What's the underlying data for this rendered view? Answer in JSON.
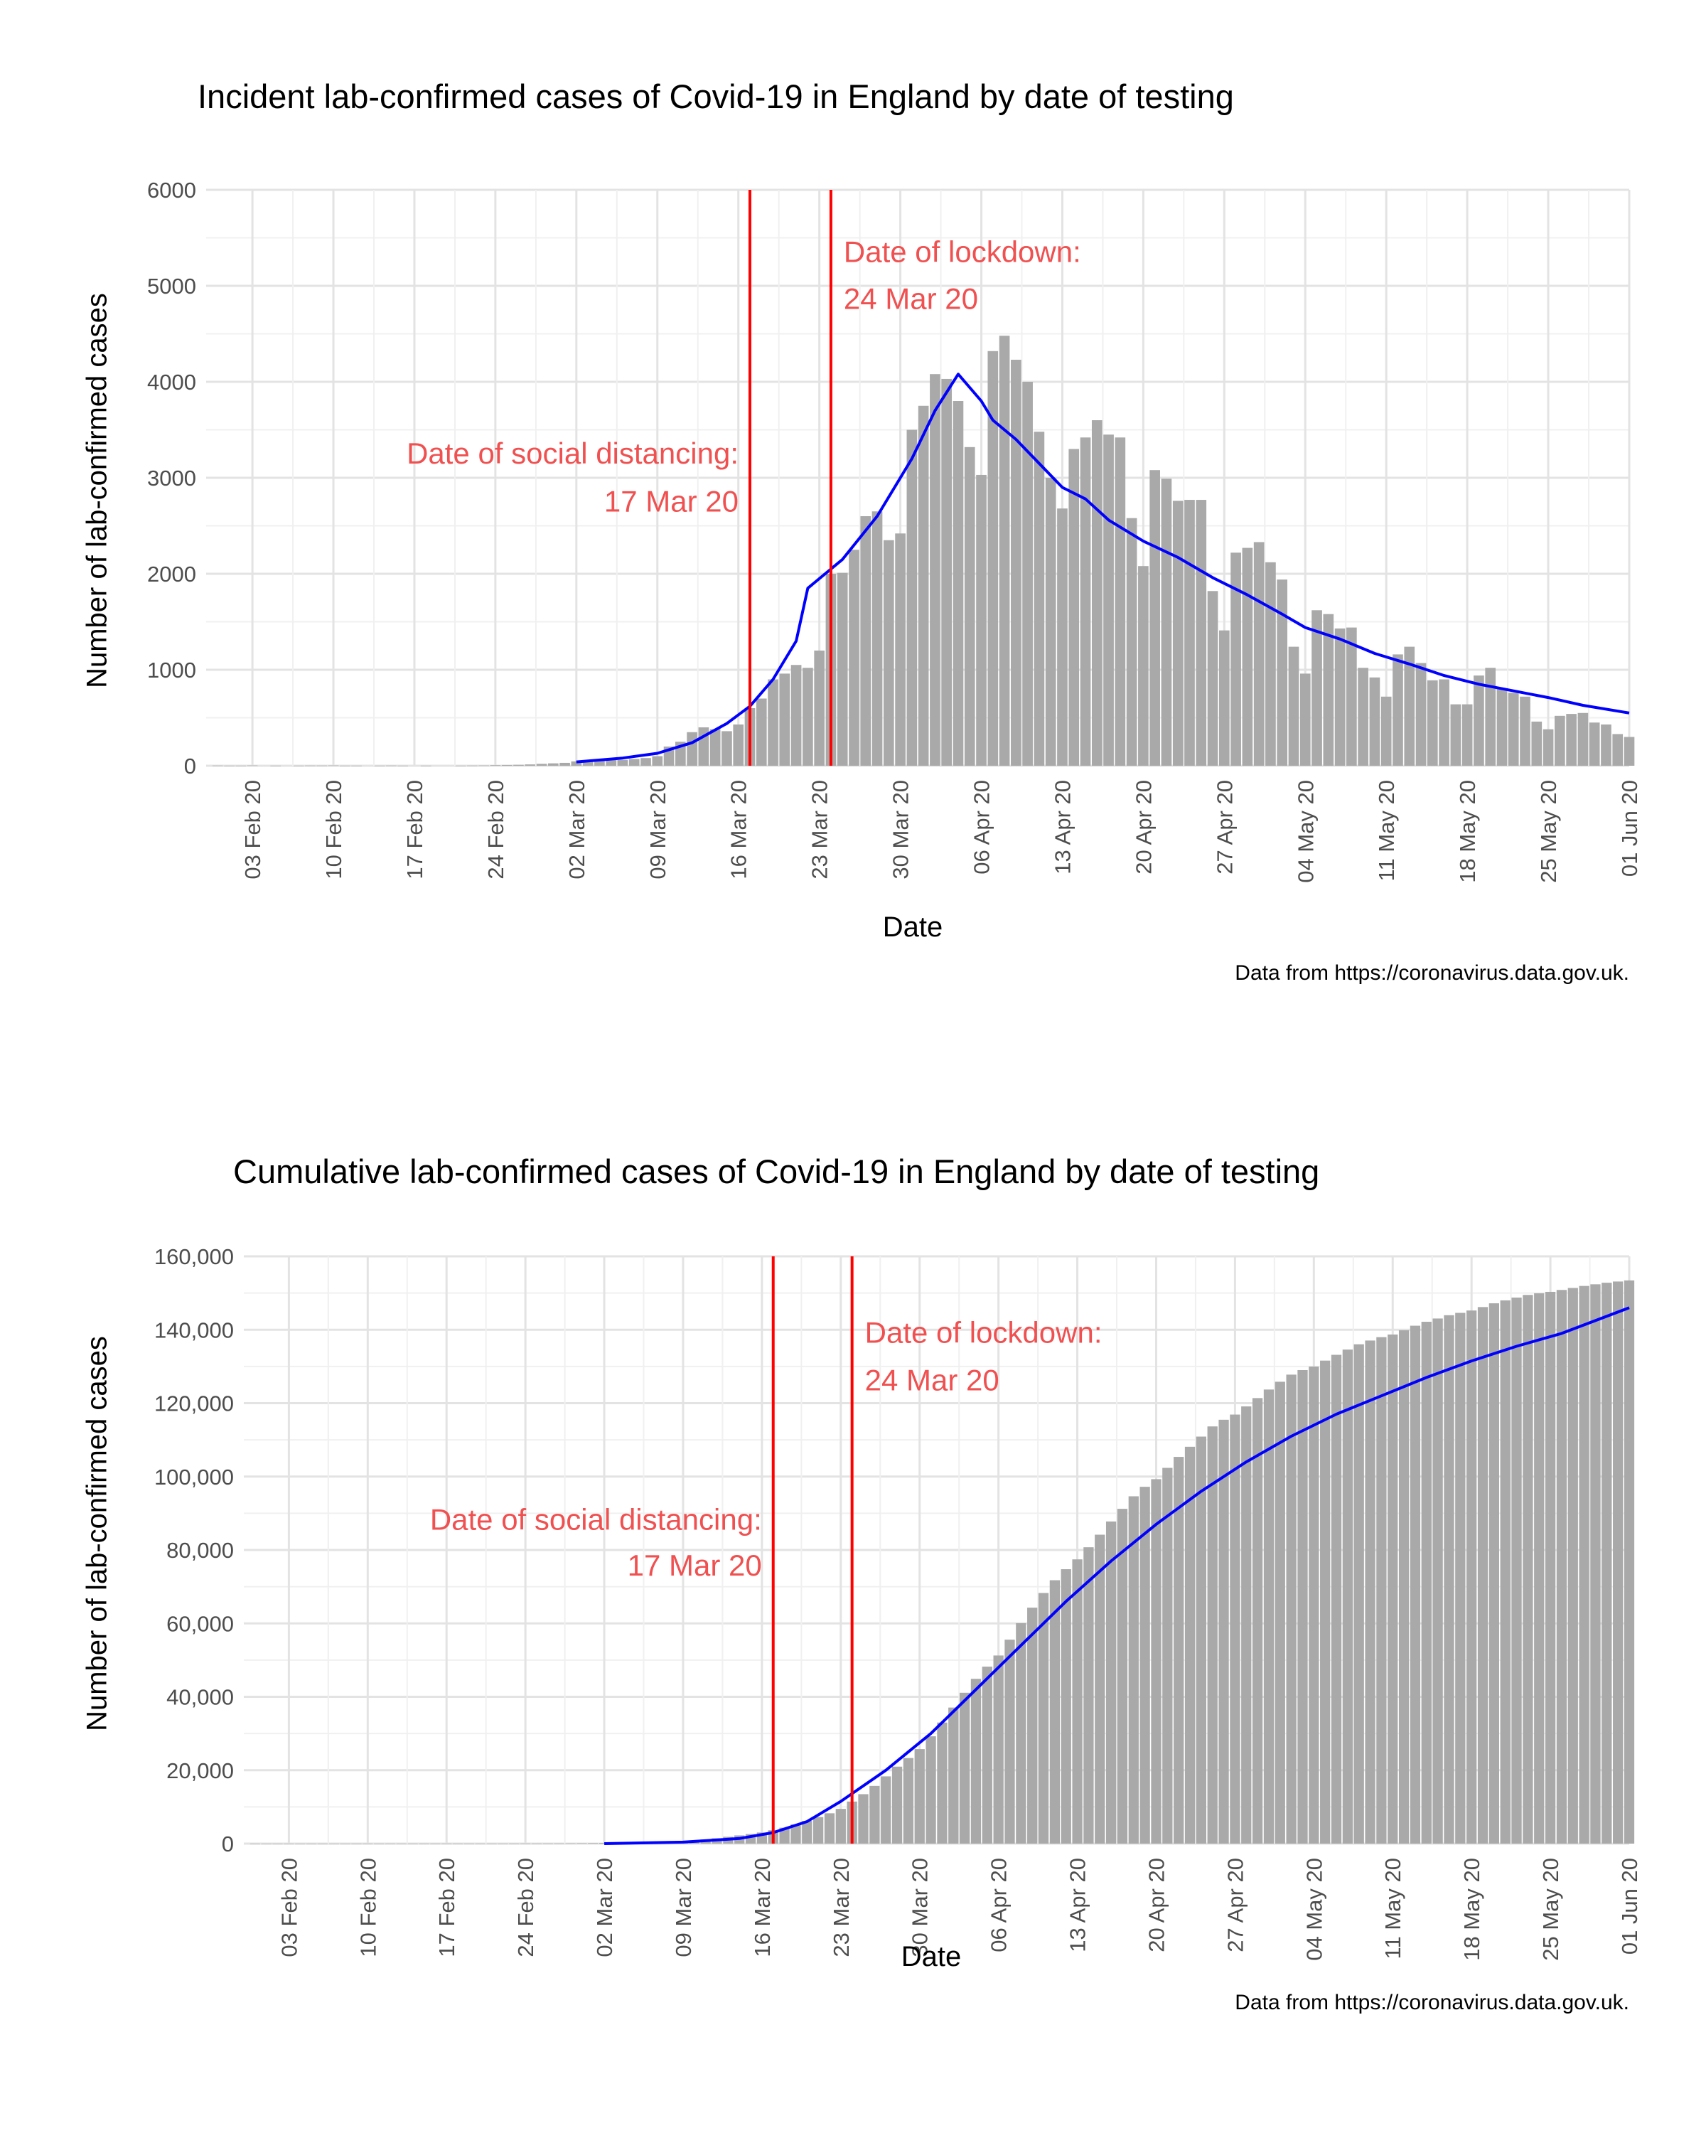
{
  "chart_data": [
    {
      "type": "bar",
      "title": "Incident lab-confirmed cases of Covid-19 in England by date of testing",
      "xlabel": "Date",
      "ylabel": "Number of lab-confirmed cases",
      "caption": "Data from https://coronavirus.data.gov.uk.",
      "x_start": "2020-01-30",
      "x_end": "2020-06-01",
      "xlim": [
        "2020-01-30",
        "2020-06-01"
      ],
      "ylim": [
        0,
        6000
      ],
      "y_ticks": [
        "0",
        "1000",
        "2000",
        "3000",
        "4000",
        "5000",
        "6000"
      ],
      "x_ticks": [
        "03 Feb 20",
        "10 Feb 20",
        "17 Feb 20",
        "24 Feb 20",
        "02 Mar 20",
        "09 Mar 20",
        "16 Mar 20",
        "23 Mar 20",
        "30 Mar 20",
        "06 Apr 20",
        "13 Apr 20",
        "20 Apr 20",
        "27 Apr 20",
        "04 May 20",
        "11 May 20",
        "18 May 20",
        "25 May 20",
        "01 Jun 20"
      ],
      "grid": true,
      "bar_color": "#a9a9a9",
      "series": [
        {
          "kind": "bar",
          "values": [
            0,
            2,
            1,
            1,
            3,
            0,
            1,
            0,
            1,
            2,
            2,
            3,
            1,
            1,
            0,
            1,
            2,
            1,
            0,
            1,
            0,
            0,
            1,
            2,
            3,
            6,
            8,
            10,
            14,
            20,
            25,
            30,
            45,
            50,
            55,
            60,
            60,
            70,
            80,
            100,
            200,
            250,
            350,
            400,
            380,
            360,
            430,
            600,
            700,
            900,
            960,
            1050,
            1020,
            1200,
            2000,
            2010,
            2250,
            2600,
            2650,
            2350,
            2420,
            3500,
            3750,
            4080,
            4030,
            3800,
            3320,
            3030,
            4320,
            4480,
            4230,
            4000,
            3480,
            3000,
            2680,
            3300,
            3420,
            3600,
            3450,
            3420,
            2580,
            2080,
            3080,
            2990,
            2760,
            2770,
            2770,
            1820,
            1410,
            2220,
            2270,
            2330,
            2120,
            1940,
            1240,
            960,
            1620,
            1580,
            1430,
            1440,
            1020,
            920,
            720,
            1160,
            1240,
            1070,
            890,
            900,
            640,
            640,
            940,
            1020,
            800,
            760,
            720,
            460,
            380,
            520,
            540,
            550,
            450,
            430,
            330,
            300
          ]
        },
        {
          "kind": "line",
          "name": "",
          "color": "#0000ff",
          "points": [
            [
              "2020-03-02",
              40
            ],
            [
              "2020-03-06",
              80
            ],
            [
              "2020-03-09",
              130
            ],
            [
              "2020-03-12",
              240
            ],
            [
              "2020-03-15",
              440
            ],
            [
              "2020-03-17",
              620
            ],
            [
              "2020-03-19",
              900
            ],
            [
              "2020-03-21",
              1300
            ],
            [
              "2020-03-22",
              1850
            ],
            [
              "2020-03-25",
              2150
            ],
            [
              "2020-03-28",
              2600
            ],
            [
              "2020-03-31",
              3200
            ],
            [
              "2020-04-02",
              3700
            ],
            [
              "2020-04-04",
              4080
            ],
            [
              "2020-04-06",
              3800
            ],
            [
              "2020-04-07",
              3600
            ],
            [
              "2020-04-09",
              3400
            ],
            [
              "2020-04-11",
              3150
            ],
            [
              "2020-04-13",
              2900
            ],
            [
              "2020-04-15",
              2780
            ],
            [
              "2020-04-17",
              2560
            ],
            [
              "2020-04-20",
              2340
            ],
            [
              "2020-04-23",
              2170
            ],
            [
              "2020-04-26",
              1960
            ],
            [
              "2020-04-29",
              1780
            ],
            [
              "2020-05-02",
              1580
            ],
            [
              "2020-05-04",
              1440
            ],
            [
              "2020-05-07",
              1320
            ],
            [
              "2020-05-10",
              1170
            ],
            [
              "2020-05-13",
              1060
            ],
            [
              "2020-05-16",
              940
            ],
            [
              "2020-05-19",
              850
            ],
            [
              "2020-05-22",
              780
            ],
            [
              "2020-05-25",
              710
            ],
            [
              "2020-05-28",
              630
            ],
            [
              "2020-06-01",
              550
            ]
          ]
        }
      ],
      "annotations": [
        {
          "date": "2020-03-17",
          "color": "#ff0000",
          "label_lines": [
            "Date of social distancing:",
            "17 Mar 20"
          ],
          "label_color": "#f05050",
          "label_side": "left",
          "label_values": [
            3150,
            2650
          ]
        },
        {
          "date": "2020-03-24",
          "color": "#ff0000",
          "label_lines": [
            "Date of lockdown:",
            "24 Mar 20"
          ],
          "label_color": "#f05050",
          "label_side": "right",
          "label_values": [
            5250,
            4760
          ]
        }
      ]
    },
    {
      "type": "bar",
      "title": "Cumulative lab-confirmed cases of Covid-19 in England by date of testing",
      "xlabel": "Date",
      "ylabel": "Number of lab-confirmed cases",
      "caption": "Data from https://coronavirus.data.gov.uk.",
      "x_start": "2020-01-30",
      "x_end": "2020-06-01",
      "xlim": [
        "2020-01-30",
        "2020-06-01"
      ],
      "ylim": [
        0,
        160000
      ],
      "y_ticks": [
        "0",
        "20,000",
        "40,000",
        "60,000",
        "80,000",
        "100,000",
        "120,000",
        "140,000",
        "160,000"
      ],
      "x_ticks": [
        "03 Feb 20",
        "10 Feb 20",
        "17 Feb 20",
        "24 Feb 20",
        "02 Mar 20",
        "09 Mar 20",
        "16 Mar 20",
        "23 Mar 20",
        "30 Mar 20",
        "06 Apr 20",
        "13 Apr 20",
        "20 Apr 20",
        "27 Apr 20",
        "04 May 20",
        "11 May 20",
        "18 May 20",
        "25 May 20",
        "01 Jun 20"
      ],
      "grid": true,
      "bar_color": "#a9a9a9",
      "series": [
        {
          "kind": "bar",
          "values": [
            0,
            2,
            3,
            4,
            7,
            7,
            8,
            8,
            9,
            11,
            13,
            16,
            17,
            18,
            18,
            19,
            21,
            22,
            22,
            23,
            23,
            23,
            24,
            26,
            29,
            35,
            43,
            53,
            67,
            87,
            112,
            142,
            187,
            237,
            292,
            352,
            412,
            482,
            562,
            662,
            862,
            1112,
            1462,
            1862,
            2242,
            2602,
            3032,
            3632,
            4332,
            5232,
            6192,
            7242,
            8262,
            9462,
            11462,
            13472,
            15722,
            18322,
            20972,
            23322,
            25742,
            29242,
            32992,
            37072,
            41102,
            44902,
            48222,
            51252,
            55572,
            60052,
            64282,
            68282,
            71762,
            74762,
            77442,
            80742,
            84162,
            87762,
            91212,
            94632,
            97212,
            99292,
            102372,
            105362,
            108122,
            110892,
            113662,
            115482,
            116892,
            119112,
            121382,
            123712,
            125832,
            127772,
            129012,
            129972,
            131592,
            133172,
            134602,
            136042,
            137062,
            137982,
            138702,
            139862,
            141102,
            142172,
            143062,
            143962,
            144602,
            145242,
            146182,
            147202,
            148002,
            148762,
            149482,
            149942,
            150322,
            150842,
            151382,
            151932,
            152382,
            152812,
            153142,
            153442
          ]
        },
        {
          "kind": "line",
          "name": "",
          "color": "#0000ff",
          "points": [
            [
              "2020-03-02",
              0
            ],
            [
              "2020-03-09",
              400
            ],
            [
              "2020-03-14",
              1400
            ],
            [
              "2020-03-17",
              3000
            ],
            [
              "2020-03-20",
              6000
            ],
            [
              "2020-03-23",
              11500
            ],
            [
              "2020-03-27",
              20000
            ],
            [
              "2020-03-31",
              30000
            ],
            [
              "2020-04-04",
              42000
            ],
            [
              "2020-04-08",
              54000
            ],
            [
              "2020-04-12",
              66000
            ],
            [
              "2020-04-16",
              77000
            ],
            [
              "2020-04-20",
              87000
            ],
            [
              "2020-04-24",
              96000
            ],
            [
              "2020-04-28",
              104000
            ],
            [
              "2020-05-02",
              111000
            ],
            [
              "2020-05-06",
              117000
            ],
            [
              "2020-05-10",
              122000
            ],
            [
              "2020-05-14",
              127000
            ],
            [
              "2020-05-18",
              131500
            ],
            [
              "2020-05-22",
              135500
            ],
            [
              "2020-05-26",
              139000
            ],
            [
              "2020-06-01",
              146000
            ]
          ]
        }
      ],
      "annotations": [
        {
          "date": "2020-03-17",
          "color": "#ff0000",
          "label_lines": [
            "Date of social distancing:",
            "17 Mar 20"
          ],
          "label_color": "#f05050",
          "label_side": "left",
          "label_values": [
            85500,
            73000
          ]
        },
        {
          "date": "2020-03-24",
          "color": "#ff0000",
          "label_lines": [
            "Date of lockdown:",
            "24 Mar 20"
          ],
          "label_color": "#f05050",
          "label_side": "right",
          "label_values": [
            136500,
            123500
          ]
        }
      ]
    }
  ]
}
